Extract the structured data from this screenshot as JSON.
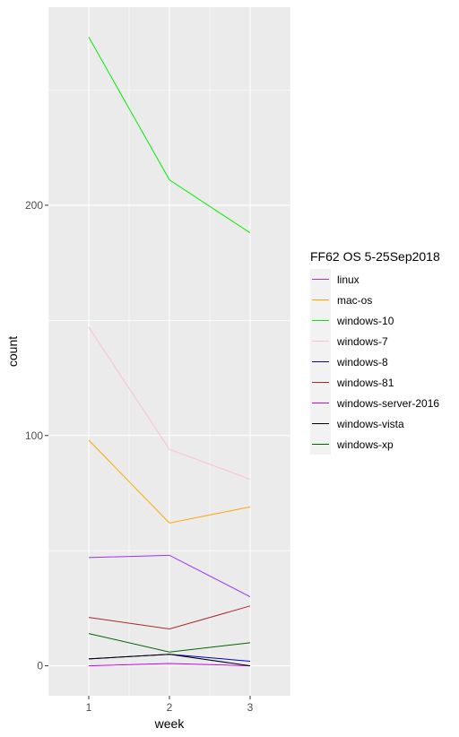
{
  "chart_data": {
    "type": "line",
    "title": "",
    "xlabel": "week",
    "ylabel": "count",
    "x": [
      1,
      2,
      3
    ],
    "x_ticks": [
      "1",
      "2",
      "3"
    ],
    "y_ticks": [
      "0",
      "100",
      "200"
    ],
    "xlim": [
      0.5,
      3.5
    ],
    "ylim": [
      -13,
      286
    ],
    "grid": true,
    "legend": {
      "title": "FF62 OS 5-25Sep2018",
      "position": "right"
    },
    "series": [
      {
        "name": "linux",
        "color": "#9b30ff",
        "values": [
          47,
          48,
          30
        ]
      },
      {
        "name": "mac-os",
        "color": "#ffa500",
        "values": [
          98,
          62,
          69
        ]
      },
      {
        "name": "windows-10",
        "color": "#00ee00",
        "values": [
          273,
          211,
          188
        ]
      },
      {
        "name": "windows-7",
        "color": "#ffc0cb",
        "values": [
          147,
          94,
          81
        ]
      },
      {
        "name": "windows-8",
        "color": "#0000cd",
        "values": [
          3,
          5,
          2
        ]
      },
      {
        "name": "windows-81",
        "color": "#a52a2a",
        "values": [
          21,
          16,
          26
        ]
      },
      {
        "name": "windows-server-2016",
        "color": "#cc00ff",
        "values": [
          0,
          1,
          0
        ]
      },
      {
        "name": "windows-vista",
        "color": "#000000",
        "values": [
          3,
          5,
          0
        ]
      },
      {
        "name": "windows-xp",
        "color": "#006400",
        "values": [
          14,
          6,
          10
        ]
      }
    ]
  }
}
